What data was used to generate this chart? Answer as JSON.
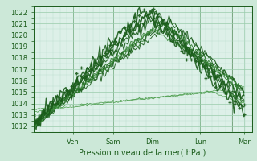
{
  "xlabel": "Pression niveau de la mer( hPa )",
  "bg_color": "#cce8d8",
  "plot_bg_color": "#ddf0e8",
  "grid_major_color": "#99ccaa",
  "grid_minor_color": "#bbddcc",
  "text_color": "#1a5c1a",
  "ylim": [
    1011.5,
    1022.5
  ],
  "yticks": [
    1012,
    1013,
    1014,
    1015,
    1016,
    1017,
    1018,
    1019,
    1020,
    1021,
    1022
  ],
  "xlim": [
    0,
    5.5
  ],
  "xtick_positions": [
    1.0,
    2.0,
    3.0,
    4.2,
    4.85,
    5.3
  ],
  "xtick_labels": [
    "Ven",
    "Sam",
    "Dim",
    "Lun",
    "",
    "Mar"
  ],
  "xvlines": [
    1.0,
    2.0,
    3.0,
    4.2,
    5.0
  ],
  "dark_green": "#1a5c1a",
  "mid_green": "#2d7a2d",
  "light_green": "#4a9c4a"
}
